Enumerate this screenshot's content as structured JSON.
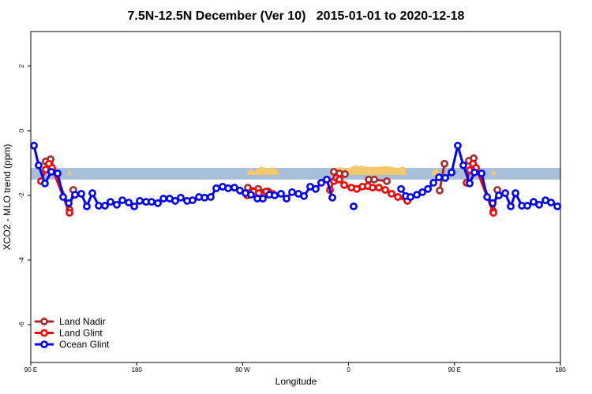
{
  "chart_data": {
    "type": "line",
    "title": "7.5N-12.5N December (Ver 10)   2015-01-01 to 2020-12-18",
    "xlabel": "Longitude",
    "ylabel": "XCO2 - MLO trend (ppm)",
    "xlim": [
      90,
      540
    ],
    "ylim": [
      -7.17,
      3.07
    ],
    "xticks": [
      {
        "value": 90,
        "label": "90 E"
      },
      {
        "value": 180,
        "label": "180"
      },
      {
        "value": 270,
        "label": "90 W"
      },
      {
        "value": 360,
        "label": "0"
      },
      {
        "value": 450,
        "label": "90 E"
      },
      {
        "value": 540,
        "label": "180"
      }
    ],
    "yticks": [
      2,
      0,
      -2,
      -4,
      -6
    ],
    "band": [
      -1.51,
      -1.15
    ],
    "band_color": "#a8bfdc",
    "legend": "bottom-left",
    "series": [
      {
        "name": "Land Nadir",
        "color": "#a52a2a",
        "x": [
          102.7,
          106.8,
          122.9,
          126.1,
          null,
          274.4,
          283.2,
          291.9,
          null,
          347.5,
          352.2,
          356.9,
          null,
          377.1,
          381.8,
          392.5,
          null,
          437.4,
          441.5,
          null,
          462.2,
          466.3,
          483,
          486.4
        ],
        "values": [
          -0.95,
          -0.88,
          -2.44,
          -1.83,
          null,
          -1.76,
          -1.8,
          -1.88,
          null,
          -1.27,
          -1.32,
          -1.34,
          null,
          -1.51,
          -1.51,
          -1.56,
          null,
          -1.85,
          -1.02,
          null,
          -0.93,
          -0.85,
          -2.49,
          -1.83
        ]
      },
      {
        "name": "Land Glint",
        "color": "#ff0000",
        "x": [
          98.7,
          102.7,
          105.4,
          108.1,
          122.9,
          null,
          273.8,
          279.1,
          283.8,
          289.9,
          295.2,
          null,
          344.2,
          347.5,
          349.6,
          352.2,
          356.3,
          362.3,
          367,
          371.7,
          376.4,
          380.4,
          385.8,
          391.1,
          396.5,
          401.9,
          409.9,
          null,
          460.2,
          462.9,
          465.6,
          468.3,
          483
        ],
        "values": [
          -1.56,
          -1.2,
          -1.02,
          -1.15,
          -2.54,
          null,
          -2.0,
          -1.88,
          -1.93,
          -1.88,
          -1.95,
          null,
          -1.83,
          -1.56,
          -1.46,
          -1.51,
          -1.68,
          -1.76,
          -1.8,
          -1.73,
          -1.71,
          -1.76,
          -1.76,
          -1.83,
          -1.95,
          -2.05,
          -2.17,
          null,
          -1.61,
          -1.22,
          -1.02,
          -1.15,
          -2.54
        ]
      },
      {
        "name": "Ocean Glint",
        "color": "#0000ff",
        "x": [
          92.7,
          96.7,
          102,
          107.4,
          112.8,
          117.5,
          122.2,
          127.6,
          132.9,
          137.6,
          142.3,
          147.7,
          153,
          157.7,
          163.1,
          167.8,
          173.2,
          177.9,
          182.6,
          187.9,
          192.6,
          198,
          202.7,
          208,
          212.7,
          217.4,
          222.8,
          227.5,
          232.9,
          237.6,
          242.9,
          247.6,
          253,
          257.7,
          263,
          267.7,
          272.4,
          277.1,
          282.5,
          287.2,
          292.6,
          297.2,
          302.6,
          307.3,
          312,
          317.4,
          322.1,
          327.4,
          332.1,
          336.8,
          341.5,
          346.2,
          null,
          364.3,
          null,
          404.6,
          408.6,
          412.6,
          418,
          422.7,
          427.4,
          432.1,
          436.8,
          442.1,
          447.5,
          452.8,
          457.5,
          462.9,
          466.9,
          473,
          477.7,
          482.4,
          487.7,
          493.1,
          497.8,
          501.8,
          507.2,
          511.9,
          517.2,
          521.9,
          527.3,
          532,
          537.4
        ],
        "values": [
          -0.46,
          -1.07,
          -1.63,
          -1.27,
          -1.32,
          -2.05,
          -2.24,
          -1.98,
          -1.95,
          -2.34,
          -1.93,
          -2.32,
          -2.32,
          -2.2,
          -2.29,
          -2.15,
          -2.22,
          -2.34,
          -2.17,
          -2.2,
          -2.2,
          -2.24,
          -2.1,
          -2.1,
          -2.17,
          -2.07,
          -2.17,
          -2.15,
          -2.05,
          -2.07,
          -2.05,
          -1.78,
          -1.73,
          -1.78,
          -1.76,
          -1.85,
          -1.93,
          -1.98,
          -2.1,
          -2.1,
          -1.98,
          -2.0,
          -1.95,
          -2.1,
          -1.9,
          -1.95,
          -2.02,
          -1.73,
          -1.8,
          -1.61,
          -1.51,
          -2.07,
          null,
          -2.34,
          null,
          -1.8,
          -2.02,
          -2.05,
          -1.98,
          -1.9,
          -1.8,
          -1.61,
          -1.44,
          -1.46,
          -1.29,
          -0.46,
          -1.07,
          -1.63,
          -1.29,
          -1.32,
          -2.05,
          -2.24,
          -2.0,
          -1.93,
          -2.34,
          -1.93,
          -2.32,
          -2.32,
          -2.2,
          -2.29,
          -2.15,
          -2.22,
          -2.34
        ]
      }
    ]
  }
}
